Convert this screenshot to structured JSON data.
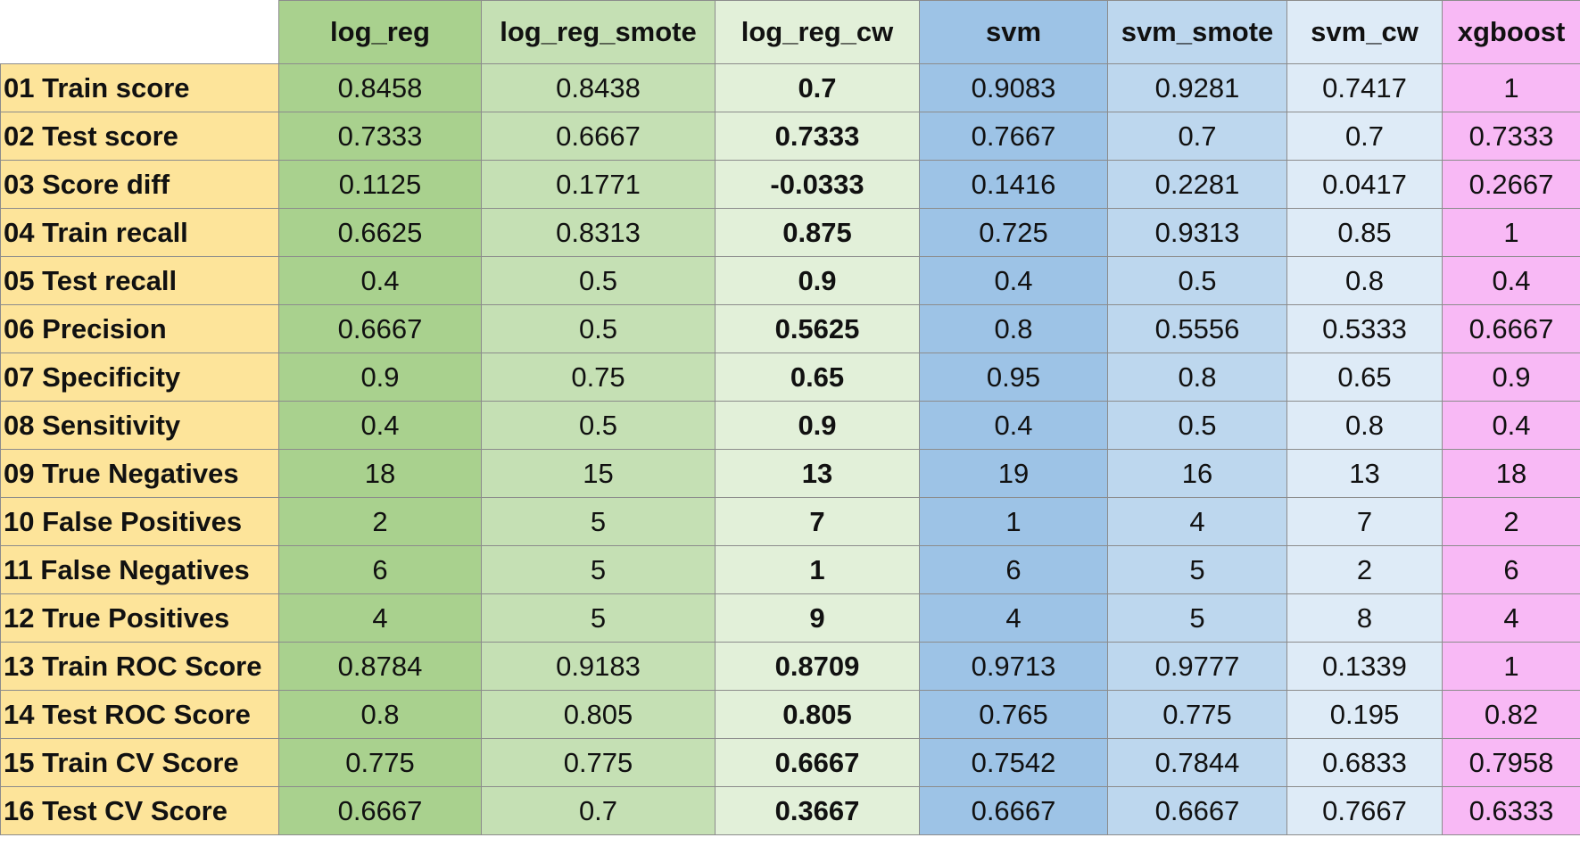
{
  "table": {
    "columns": [
      {
        "key": "log_reg",
        "label": "log_reg",
        "bg": "#a9d18e",
        "highlight": false
      },
      {
        "key": "log_reg_smote",
        "label": "log_reg_smote",
        "bg": "#c5e0b4",
        "highlight": false
      },
      {
        "key": "log_reg_cw",
        "label": "log_reg_cw",
        "bg": "#e2f0d9",
        "highlight": true
      },
      {
        "key": "svm",
        "label": "svm",
        "bg": "#9dc3e6",
        "highlight": false
      },
      {
        "key": "svm_smote",
        "label": "svm_smote",
        "bg": "#bdd7ee",
        "highlight": false
      },
      {
        "key": "svm_cw",
        "label": "svm_cw",
        "bg": "#deebf7",
        "highlight": false
      },
      {
        "key": "xgboost",
        "label": "xgboost",
        "bg": "#f8b9f5",
        "highlight": false
      }
    ],
    "row_label_bg": "#fde49a",
    "highlight_color": "#00b050",
    "rows": [
      {
        "label": "01 Train score",
        "values": [
          "0.8458",
          "0.8438",
          "0.7",
          "0.9083",
          "0.9281",
          "0.7417",
          "1"
        ]
      },
      {
        "label": "02 Test score",
        "values": [
          "0.7333",
          "0.6667",
          "0.7333",
          "0.7667",
          "0.7",
          "0.7",
          "0.7333"
        ]
      },
      {
        "label": "03 Score diff",
        "values": [
          "0.1125",
          "0.1771",
          "-0.0333",
          "0.1416",
          "0.2281",
          "0.0417",
          "0.2667"
        ]
      },
      {
        "label": "04 Train recall",
        "values": [
          "0.6625",
          "0.8313",
          "0.875",
          "0.725",
          "0.9313",
          "0.85",
          "1"
        ]
      },
      {
        "label": "05 Test recall",
        "values": [
          "0.4",
          "0.5",
          "0.9",
          "0.4",
          "0.5",
          "0.8",
          "0.4"
        ]
      },
      {
        "label": "06 Precision",
        "values": [
          "0.6667",
          "0.5",
          "0.5625",
          "0.8",
          "0.5556",
          "0.5333",
          "0.6667"
        ]
      },
      {
        "label": "07 Specificity",
        "values": [
          "0.9",
          "0.75",
          "0.65",
          "0.95",
          "0.8",
          "0.65",
          "0.9"
        ]
      },
      {
        "label": "08 Sensitivity",
        "values": [
          "0.4",
          "0.5",
          "0.9",
          "0.4",
          "0.5",
          "0.8",
          "0.4"
        ]
      },
      {
        "label": "09 True Negatives",
        "values": [
          "18",
          "15",
          "13",
          "19",
          "16",
          "13",
          "18"
        ]
      },
      {
        "label": "10 False Positives",
        "values": [
          "2",
          "5",
          "7",
          "1",
          "4",
          "7",
          "2"
        ]
      },
      {
        "label": "11 False Negatives",
        "values": [
          "6",
          "5",
          "1",
          "6",
          "5",
          "2",
          "6"
        ]
      },
      {
        "label": "12 True Positives",
        "values": [
          "4",
          "5",
          "9",
          "4",
          "5",
          "8",
          "4"
        ]
      },
      {
        "label": "13 Train ROC Score",
        "values": [
          "0.8784",
          "0.9183",
          "0.8709",
          "0.9713",
          "0.9777",
          "0.1339",
          "1"
        ]
      },
      {
        "label": "14 Test ROC Score",
        "values": [
          "0.8",
          "0.805",
          "0.805",
          "0.765",
          "0.775",
          "0.195",
          "0.82"
        ]
      },
      {
        "label": "15 Train CV Score",
        "values": [
          "0.775",
          "0.775",
          "0.6667",
          "0.7542",
          "0.7844",
          "0.6833",
          "0.7958"
        ]
      },
      {
        "label": "16 Test CV Score",
        "values": [
          "0.6667",
          "0.7",
          "0.3667",
          "0.6667",
          "0.6667",
          "0.7667",
          "0.6333"
        ]
      }
    ]
  }
}
